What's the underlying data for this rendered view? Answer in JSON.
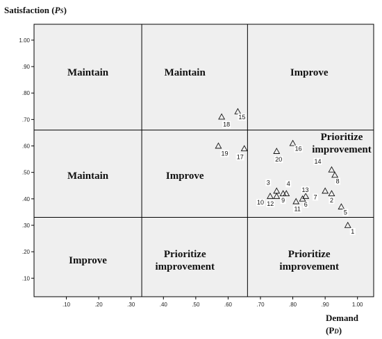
{
  "chart_data": {
    "type": "scatter",
    "title": "",
    "xlabel": "Demand",
    "xlabel_sub": "(P",
    "xlabel_sub_letter": "D",
    "xlabel_close": ")",
    "ylabel": "Satisfaction (",
    "ylabel_p": "P",
    "ylabel_sub_letter": "S",
    "ylabel_close": ")",
    "xlim": [
      0.0,
      1.05
    ],
    "ylim": [
      0.03,
      1.06
    ],
    "grid": false,
    "x_ticks": [
      ".10",
      ".20",
      ".30",
      ".40",
      ".50",
      ".60",
      ".70",
      ".80",
      ".90",
      "1.00"
    ],
    "x_tick_values": [
      0.1,
      0.2,
      0.3,
      0.4,
      0.5,
      0.6,
      0.7,
      0.8,
      0.9,
      1.0
    ],
    "y_ticks": [
      "1.00",
      ".90",
      ".80",
      ".70",
      ".60",
      ".50",
      ".40",
      ".30",
      ".20",
      ".10"
    ],
    "y_tick_values": [
      1.0,
      0.9,
      0.8,
      0.7,
      0.6,
      0.5,
      0.4,
      0.3,
      0.2,
      0.1
    ],
    "divider_x": [
      0.333,
      0.66
    ],
    "divider_y": [
      0.33,
      0.66
    ],
    "regions": [
      {
        "row": "top",
        "col": "left",
        "label": "Maintain"
      },
      {
        "row": "top",
        "col": "middle",
        "label": "Maintain"
      },
      {
        "row": "top",
        "col": "right",
        "label": "Improve"
      },
      {
        "row": "middle",
        "col": "left",
        "label": "Maintain"
      },
      {
        "row": "middle",
        "col": "middle",
        "label": "Improve"
      },
      {
        "row": "middle",
        "col": "right",
        "label": "Prioritize\nimprovement"
      },
      {
        "row": "bottom",
        "col": "left",
        "label": "Improve"
      },
      {
        "row": "bottom",
        "col": "middle",
        "label": "Prioritize\nimprovement"
      },
      {
        "row": "bottom",
        "col": "right",
        "label": "Prioritize\nimprovement"
      }
    ],
    "marker": "triangle-open",
    "points": [
      {
        "label": "1",
        "x": 0.97,
        "y": 0.3
      },
      {
        "label": "2",
        "x": 0.92,
        "y": 0.42
      },
      {
        "label": "3",
        "x": 0.75,
        "y": 0.43
      },
      {
        "label": "4",
        "x": 0.78,
        "y": 0.42
      },
      {
        "label": "5",
        "x": 0.95,
        "y": 0.37
      },
      {
        "label": "6",
        "x": 0.84,
        "y": 0.41
      },
      {
        "label": "7",
        "x": 0.9,
        "y": 0.43
      },
      {
        "label": "8",
        "x": 0.93,
        "y": 0.49
      },
      {
        "label": "9",
        "x": 0.77,
        "y": 0.42
      },
      {
        "label": "10",
        "x": 0.73,
        "y": 0.41
      },
      {
        "label": "11",
        "x": 0.81,
        "y": 0.39
      },
      {
        "label": "12",
        "x": 0.75,
        "y": 0.41
      },
      {
        "label": "13",
        "x": 0.83,
        "y": 0.4
      },
      {
        "label": "14",
        "x": 0.92,
        "y": 0.51
      },
      {
        "label": "15",
        "x": 0.63,
        "y": 0.73
      },
      {
        "label": "16",
        "x": 0.8,
        "y": 0.61
      },
      {
        "label": "17",
        "x": 0.65,
        "y": 0.59
      },
      {
        "label": "18",
        "x": 0.58,
        "y": 0.71
      },
      {
        "label": "19",
        "x": 0.57,
        "y": 0.6
      },
      {
        "label": "20",
        "x": 0.75,
        "y": 0.58
      }
    ]
  }
}
